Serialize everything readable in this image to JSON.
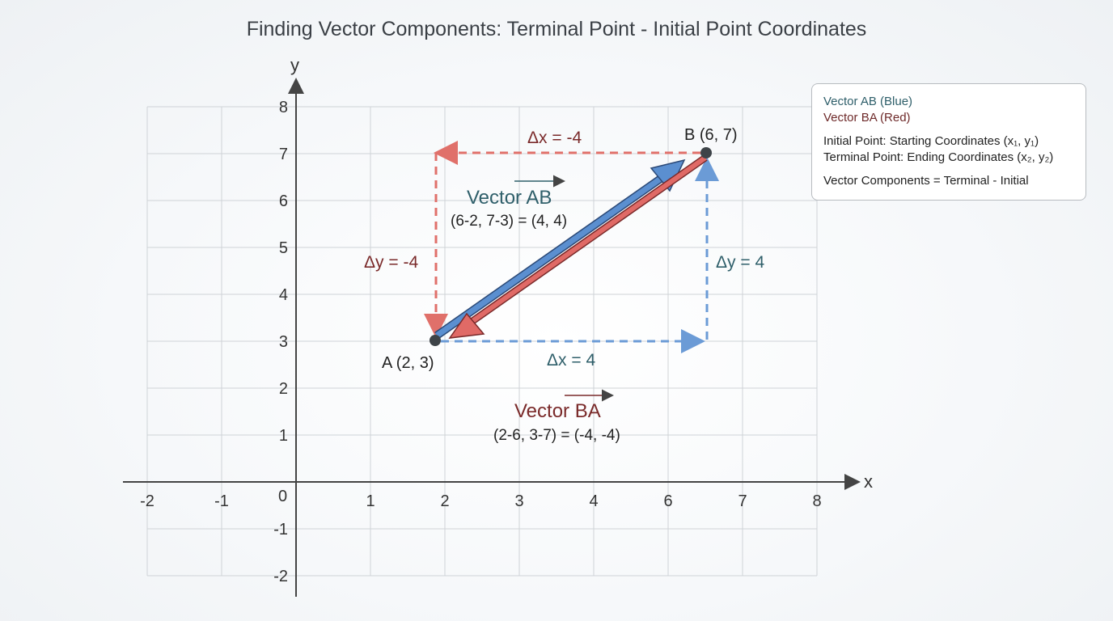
{
  "title": "Finding Vector Components: Terminal Point - Initial Point Coordinates",
  "axes": {
    "x_label": "x",
    "y_label": "y",
    "origin_label": "0",
    "x_ticks": [
      "-2",
      "-1",
      "1",
      "2",
      "3",
      "4",
      "6",
      "7",
      "8"
    ],
    "y_ticks": [
      "8",
      "7",
      "6",
      "5",
      "4",
      "3",
      "2",
      "1",
      "-1",
      "-2"
    ]
  },
  "points": {
    "A": {
      "label": "A (2, 3)",
      "x": 2,
      "y": 3
    },
    "B": {
      "label": "B (6, 7)",
      "x": 6,
      "y": 7
    }
  },
  "labels": {
    "ab_title": "Vector AB",
    "ab_calc": "(6-2, 7-3) = (4, 4)",
    "ba_title": "Vector BA",
    "ba_calc": "(2-6, 3-7) = (-4, -4)",
    "dx_ab": "Δx = 4",
    "dy_ab": "Δy = 4",
    "dx_ba": "Δx = -4",
    "dy_ba": "Δy = -4"
  },
  "legend": {
    "ab": "Vector AB (Blue)",
    "ba": "Vector BA (Red)",
    "initial": "Initial Point: Starting Coordinates (x₁, y₁)",
    "terminal": "Terminal Point: Ending Coordinates (x₂, y₂)",
    "formula": "Vector Components = Terminal - Initial"
  },
  "colors": {
    "blue": "#5b8fd0",
    "red": "#e06a66",
    "blue_text": "#2f5f6a",
    "red_text": "#7a2a2a"
  }
}
